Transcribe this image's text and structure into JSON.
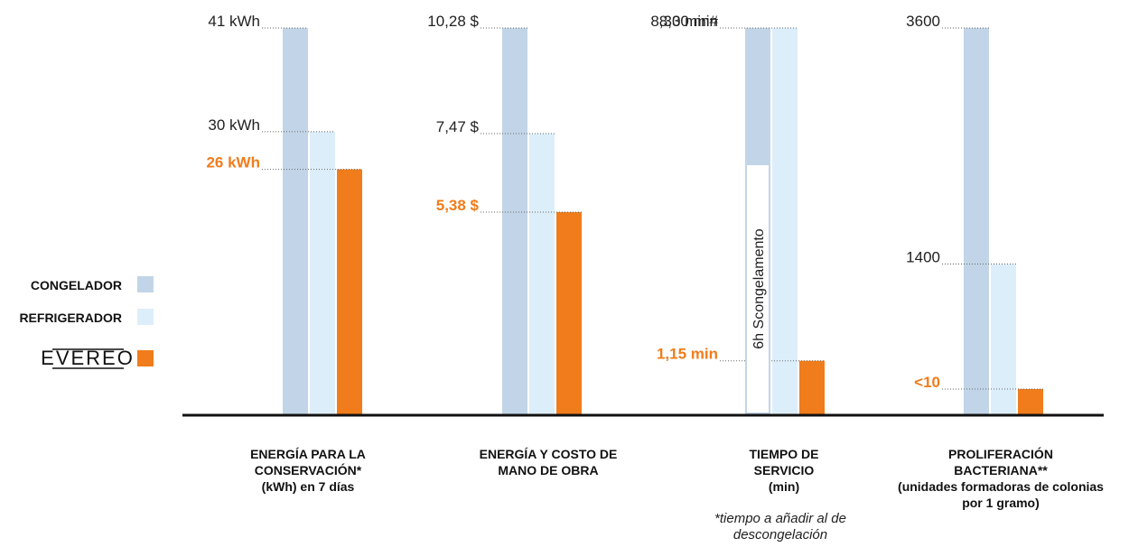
{
  "colors": {
    "congelador": "#c2d5e8",
    "refrigerador": "#ddeefb",
    "evereo": "#f07c1c",
    "axis": "#111111",
    "dotted": "#666666"
  },
  "legend": [
    {
      "key": "congelador",
      "label": "CONGELADOR",
      "type": "text"
    },
    {
      "key": "refrigerador",
      "label": "REFRIGERADOR",
      "type": "text"
    },
    {
      "key": "evereo",
      "label": "EVEREO",
      "type": "logo"
    }
  ],
  "chart_data": {
    "type": "bar",
    "series_keys": [
      "congelador",
      "refrigerador",
      "evereo"
    ],
    "groups": [
      {
        "category_lines": [
          "ENERGÍA PARA LA",
          "CONSERVACIÓN*",
          "(kWh) en 7 días"
        ],
        "values": [
          41,
          30,
          26
        ],
        "labels": [
          "41 kWh",
          "30 kWh",
          "26 kWh"
        ],
        "max": 41
      },
      {
        "category_lines": [
          "ENERGÍA Y COSTO DE",
          "MANO DE OBRA"
        ],
        "values": [
          10.28,
          7.47,
          5.38
        ],
        "labels": [
          "10,28 $",
          "7,47 $",
          "5,38 $"
        ],
        "max": 10.28
      },
      {
        "category_lines": [
          "TIEMPO DE",
          "SERVICIO",
          "(min)"
        ],
        "note_lines": [
          "*tiempo a añadir al de",
          "descongelación"
        ],
        "values": [
          8.3,
          8.3,
          1.15
        ],
        "labels": [
          "8,30 min#",
          "8,30 min",
          "1,15 min"
        ],
        "defrost_label": "6h Scongelamento",
        "max": 8.3
      },
      {
        "category_lines": [
          "PROLIFERACIÓN",
          "BACTERIANA**",
          "(unidades formadoras de colonias",
          "por 1 gramo)"
        ],
        "values": [
          3600,
          1400,
          10
        ],
        "labels": [
          "3600",
          "1400",
          "<10"
        ],
        "max": 3600
      }
    ]
  }
}
